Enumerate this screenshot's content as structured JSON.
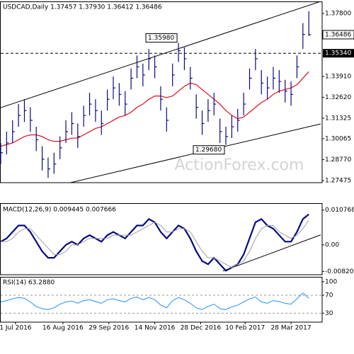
{
  "chart_data": [
    {
      "type": "ohlc",
      "title": "USDCAD,Daily 1.37457 1.37930 1.36412 1.36486",
      "watermark": "ActionForex.com",
      "x": [
        0,
        4,
        8,
        12,
        16,
        20,
        24,
        28,
        32,
        36,
        40,
        44,
        48,
        52,
        56,
        60,
        64,
        68,
        72,
        76,
        80,
        84,
        88,
        92,
        96,
        100,
        104,
        108,
        112,
        116,
        120,
        124,
        128,
        132,
        136,
        140,
        144,
        148,
        152,
        156,
        160,
        164,
        168,
        172,
        176,
        180,
        184,
        188,
        192,
        196,
        200,
        204,
        208
      ],
      "high": [
        1.298,
        1.305,
        1.312,
        1.322,
        1.325,
        1.32,
        1.308,
        1.296,
        1.289,
        1.292,
        1.302,
        1.312,
        1.317,
        1.31,
        1.321,
        1.329,
        1.325,
        1.318,
        1.331,
        1.339,
        1.335,
        1.33,
        1.344,
        1.352,
        1.347,
        1.356,
        1.352,
        1.333,
        1.32,
        1.347,
        1.3598,
        1.357,
        1.345,
        1.328,
        1.318,
        1.325,
        1.329,
        1.313,
        1.308,
        1.315,
        1.319,
        1.329,
        1.344,
        1.356,
        1.343,
        1.339,
        1.345,
        1.343,
        1.337,
        1.336,
        1.352,
        1.372,
        1.3793
      ],
      "low": [
        1.285,
        1.291,
        1.298,
        1.308,
        1.311,
        1.305,
        1.293,
        1.281,
        1.2765,
        1.279,
        1.288,
        1.298,
        1.303,
        1.295,
        1.308,
        1.315,
        1.311,
        1.303,
        1.318,
        1.325,
        1.321,
        1.315,
        1.331,
        1.338,
        1.333,
        1.343,
        1.338,
        1.318,
        1.305,
        1.333,
        1.348,
        1.343,
        1.331,
        1.313,
        1.303,
        1.311,
        1.315,
        1.298,
        1.2968,
        1.301,
        1.305,
        1.315,
        1.331,
        1.343,
        1.328,
        1.325,
        1.331,
        1.329,
        1.323,
        1.321,
        1.338,
        1.356,
        1.36412
      ],
      "close": [
        1.292,
        1.298,
        1.305,
        1.315,
        1.318,
        1.312,
        1.3,
        1.288,
        1.282,
        1.285,
        1.295,
        1.305,
        1.31,
        1.302,
        1.315,
        1.322,
        1.318,
        1.31,
        1.325,
        1.332,
        1.328,
        1.322,
        1.338,
        1.345,
        1.34,
        1.35,
        1.345,
        1.325,
        1.312,
        1.34,
        1.355,
        1.35,
        1.338,
        1.32,
        1.31,
        1.318,
        1.322,
        1.305,
        1.302,
        1.308,
        1.312,
        1.322,
        1.338,
        1.35,
        1.335,
        1.332,
        1.338,
        1.336,
        1.33,
        1.328,
        1.345,
        1.365,
        1.36486
      ],
      "color": "#0a0a80",
      "series": [
        {
          "color": "#e0101a",
          "values": [
            1.296,
            1.297,
            1.298,
            1.3,
            1.302,
            1.303,
            1.303,
            1.302,
            1.3,
            1.299,
            1.299,
            1.3,
            1.301,
            1.301,
            1.303,
            1.305,
            1.307,
            1.308,
            1.31,
            1.312,
            1.314,
            1.315,
            1.317,
            1.32,
            1.322,
            1.325,
            1.327,
            1.327,
            1.326,
            1.327,
            1.33,
            1.333,
            1.335,
            1.334,
            1.331,
            1.328,
            1.325,
            1.322,
            1.318,
            1.315,
            1.313,
            1.314,
            1.317,
            1.32,
            1.323,
            1.325,
            1.328,
            1.33,
            1.331,
            1.332,
            1.334,
            1.338,
            1.342
          ]
        }
      ],
      "xlim": [
        0,
        217
      ],
      "ylim": [
        1.2735,
        1.3854
      ],
      "yticks": [
        {
          "value": 1.378,
          "label": "1.37800"
        },
        {
          "value": 1.3391,
          "label": "1.33910"
        },
        {
          "value": 1.3262,
          "label": "1.32620"
        },
        1.31325,
        1.30065,
        {
          "value": 1.2877,
          "label": "1.28770"
        },
        1.27475
      ],
      "price_marker": 1.36486,
      "level_line": {
        "value": 1.3534,
        "label": "1.35340"
      },
      "annotations": [
        {
          "x": 120,
          "value": 1.3598,
          "label": "1.35980"
        },
        {
          "x": 152,
          "value": 1.2968,
          "label": "1.29680"
        }
      ],
      "trendlines": [
        {
          "x": [
            0,
            216
          ],
          "y": [
            1.3198,
            1.3854
          ]
        },
        {
          "x": [
            47,
            216
          ],
          "y": [
            1.2735,
            1.3098
          ]
        }
      ]
    },
    {
      "type": "line",
      "title": "MACD(12,26,9) 0.009445 0.007666",
      "series": [
        {
          "color": "#0a0a80",
          "width": 2.2,
          "values": [
            0.001,
            0.002,
            0.004,
            0.006,
            0.006,
            0.004,
            0.001,
            -0.002,
            -0.004,
            -0.004,
            -0.002,
            0.0,
            0.001,
            0.0,
            0.002,
            0.003,
            0.002,
            0.001,
            0.003,
            0.004,
            0.003,
            0.002,
            0.004,
            0.006,
            0.006,
            0.008,
            0.007,
            0.004,
            0.002,
            0.004,
            0.006,
            0.005,
            0.002,
            -0.002,
            -0.005,
            -0.006,
            -0.004,
            -0.006,
            -0.008,
            -0.007,
            -0.006,
            -0.003,
            0.002,
            0.007,
            0.008,
            0.006,
            0.005,
            0.003,
            0.001,
            0.001,
            0.004,
            0.008,
            0.009445
          ]
        },
        {
          "color": "#a0a0a0",
          "width": 1,
          "values": [
            0.001,
            0.001,
            0.002,
            0.004,
            0.005,
            0.005,
            0.003,
            0.001,
            -0.001,
            -0.003,
            -0.003,
            -0.002,
            0.0,
            0.0,
            0.001,
            0.002,
            0.002,
            0.002,
            0.002,
            0.003,
            0.003,
            0.003,
            0.003,
            0.004,
            0.005,
            0.006,
            0.007,
            0.006,
            0.004,
            0.004,
            0.005,
            0.005,
            0.004,
            0.001,
            -0.002,
            -0.004,
            -0.004,
            -0.005,
            -0.006,
            -0.007,
            -0.006,
            -0.005,
            -0.002,
            0.002,
            0.005,
            0.006,
            0.006,
            0.004,
            0.003,
            0.002,
            0.003,
            0.005,
            0.007666
          ]
        }
      ],
      "ylim": [
        -0.00923,
        0.0129
      ],
      "yticks": [
        0.010768,
        {
          "value": 0,
          "label": "0.00"
        },
        {
          "value": -0.0082,
          "label": "-0.00820"
        }
      ],
      "trendlines": [
        {
          "x": [
            150,
            216
          ],
          "y": [
            -0.0081,
            0.0031
          ]
        }
      ]
    },
    {
      "type": "line",
      "title": "RSI(14) 63.2880",
      "series": [
        {
          "color": "#1e90ff",
          "width": 1,
          "values": [
            55,
            58,
            62,
            65,
            63,
            55,
            45,
            40,
            38,
            42,
            50,
            55,
            57,
            52,
            58,
            60,
            56,
            52,
            60,
            62,
            58,
            55,
            63,
            66,
            60,
            65,
            60,
            48,
            42,
            58,
            65,
            60,
            52,
            42,
            38,
            45,
            50,
            40,
            38,
            44,
            48,
            55,
            62,
            66,
            55,
            52,
            58,
            56,
            52,
            50,
            62,
            75,
            63.288
          ]
        }
      ],
      "ylim": [
        10,
        111
      ],
      "yticks": [
        100,
        70,
        30
      ],
      "dashed": [
        70,
        30
      ],
      "xticks": [
        {
          "value": 10,
          "label": "1 Jul 2016"
        },
        {
          "value": 42,
          "label": "16 Aug 2016"
        },
        {
          "value": 73,
          "label": "29 Sep 2016"
        },
        {
          "value": 104,
          "label": "14 Nov 2016"
        },
        {
          "value": 135,
          "label": "28 Dec 2016"
        },
        {
          "value": 165,
          "label": "10 Feb 2017"
        },
        {
          "value": 196,
          "label": "28 Mar 2017"
        }
      ]
    }
  ]
}
